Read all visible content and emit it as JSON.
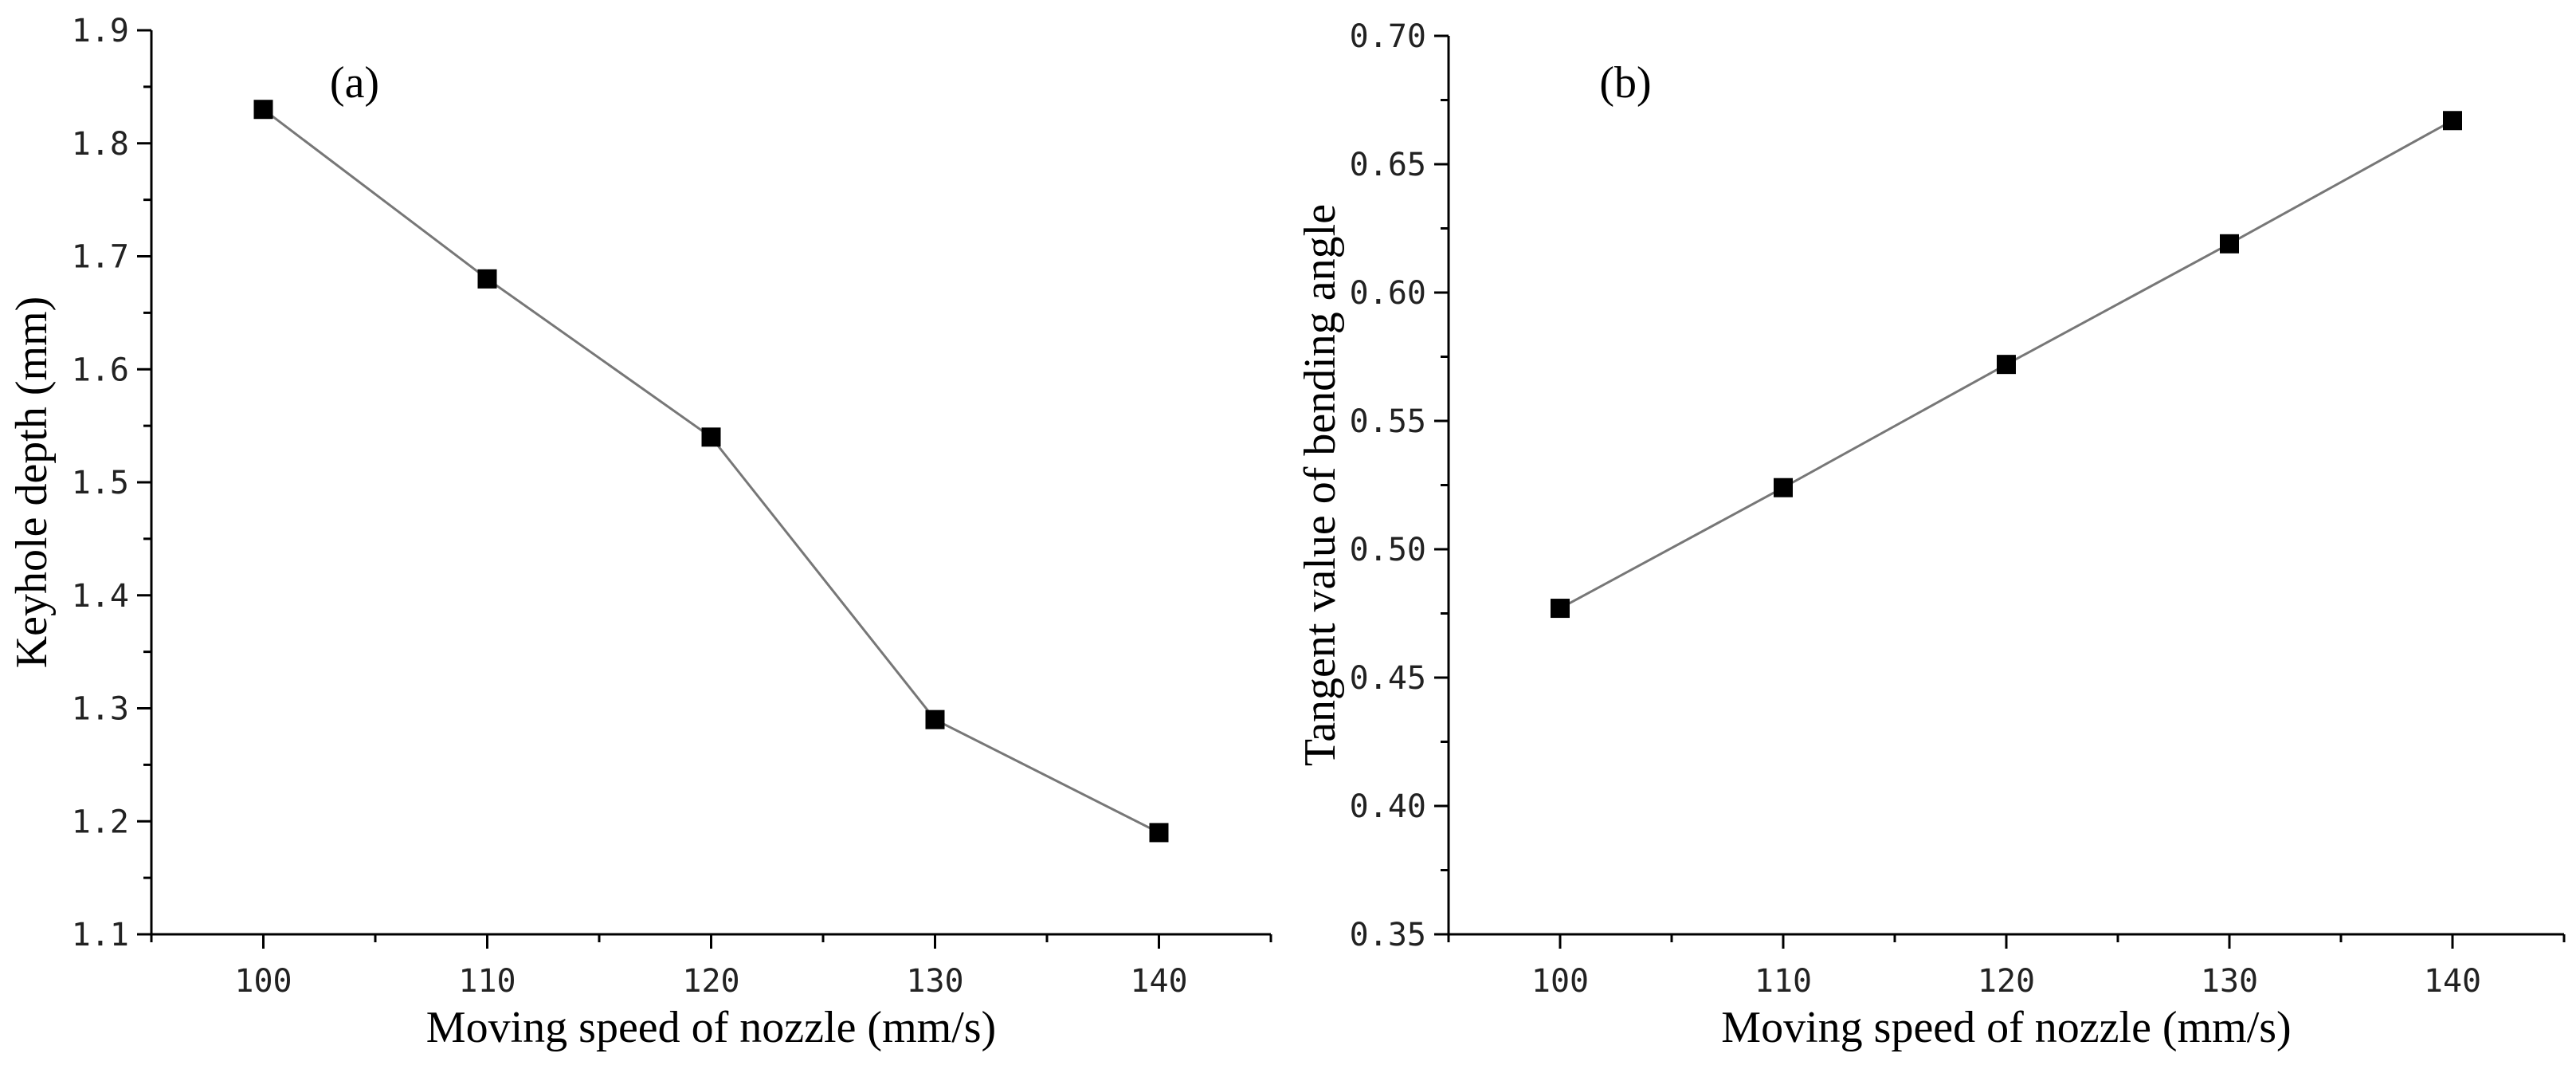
{
  "chart_data": [
    {
      "type": "line",
      "panel_label": "(a)",
      "xlabel": "Moving speed of nozzle (mm/s)",
      "ylabel": "Keyhole depth (mm)",
      "x": [
        100,
        110,
        120,
        130,
        140
      ],
      "series": [
        {
          "name": "Keyhole depth",
          "values": [
            1.83,
            1.68,
            1.54,
            1.29,
            1.19
          ]
        }
      ],
      "xlim": [
        95,
        145
      ],
      "ylim": [
        1.1,
        1.9
      ],
      "xticks": [
        "100",
        "110",
        "120",
        "130",
        "140"
      ],
      "xtick_values": [
        100,
        110,
        120,
        130,
        140
      ],
      "yticks": [
        "1.1",
        "1.2",
        "1.3",
        "1.4",
        "1.5",
        "1.6",
        "1.7",
        "1.8",
        "1.9"
      ],
      "ytick_values": [
        1.1,
        1.2,
        1.3,
        1.4,
        1.5,
        1.6,
        1.7,
        1.8,
        1.9
      ],
      "marker": "square",
      "grid": false
    },
    {
      "type": "line",
      "panel_label": "(b)",
      "xlabel": "Moving speed of nozzle (mm/s)",
      "ylabel": "Tangent value of bending angle",
      "x": [
        100,
        110,
        120,
        130,
        140
      ],
      "series": [
        {
          "name": "Tangent value of bending angle",
          "values": [
            0.477,
            0.524,
            0.572,
            0.619,
            0.667
          ]
        }
      ],
      "xlim": [
        95,
        145
      ],
      "ylim": [
        0.35,
        0.7
      ],
      "xticks": [
        "100",
        "110",
        "120",
        "130",
        "140"
      ],
      "xtick_values": [
        100,
        110,
        120,
        130,
        140
      ],
      "yticks": [
        "0.35",
        "0.40",
        "0.45",
        "0.50",
        "0.55",
        "0.60",
        "0.65",
        "0.70"
      ],
      "ytick_values": [
        0.35,
        0.4,
        0.45,
        0.5,
        0.55,
        0.6,
        0.65,
        0.7
      ],
      "marker": "square",
      "grid": false
    }
  ]
}
